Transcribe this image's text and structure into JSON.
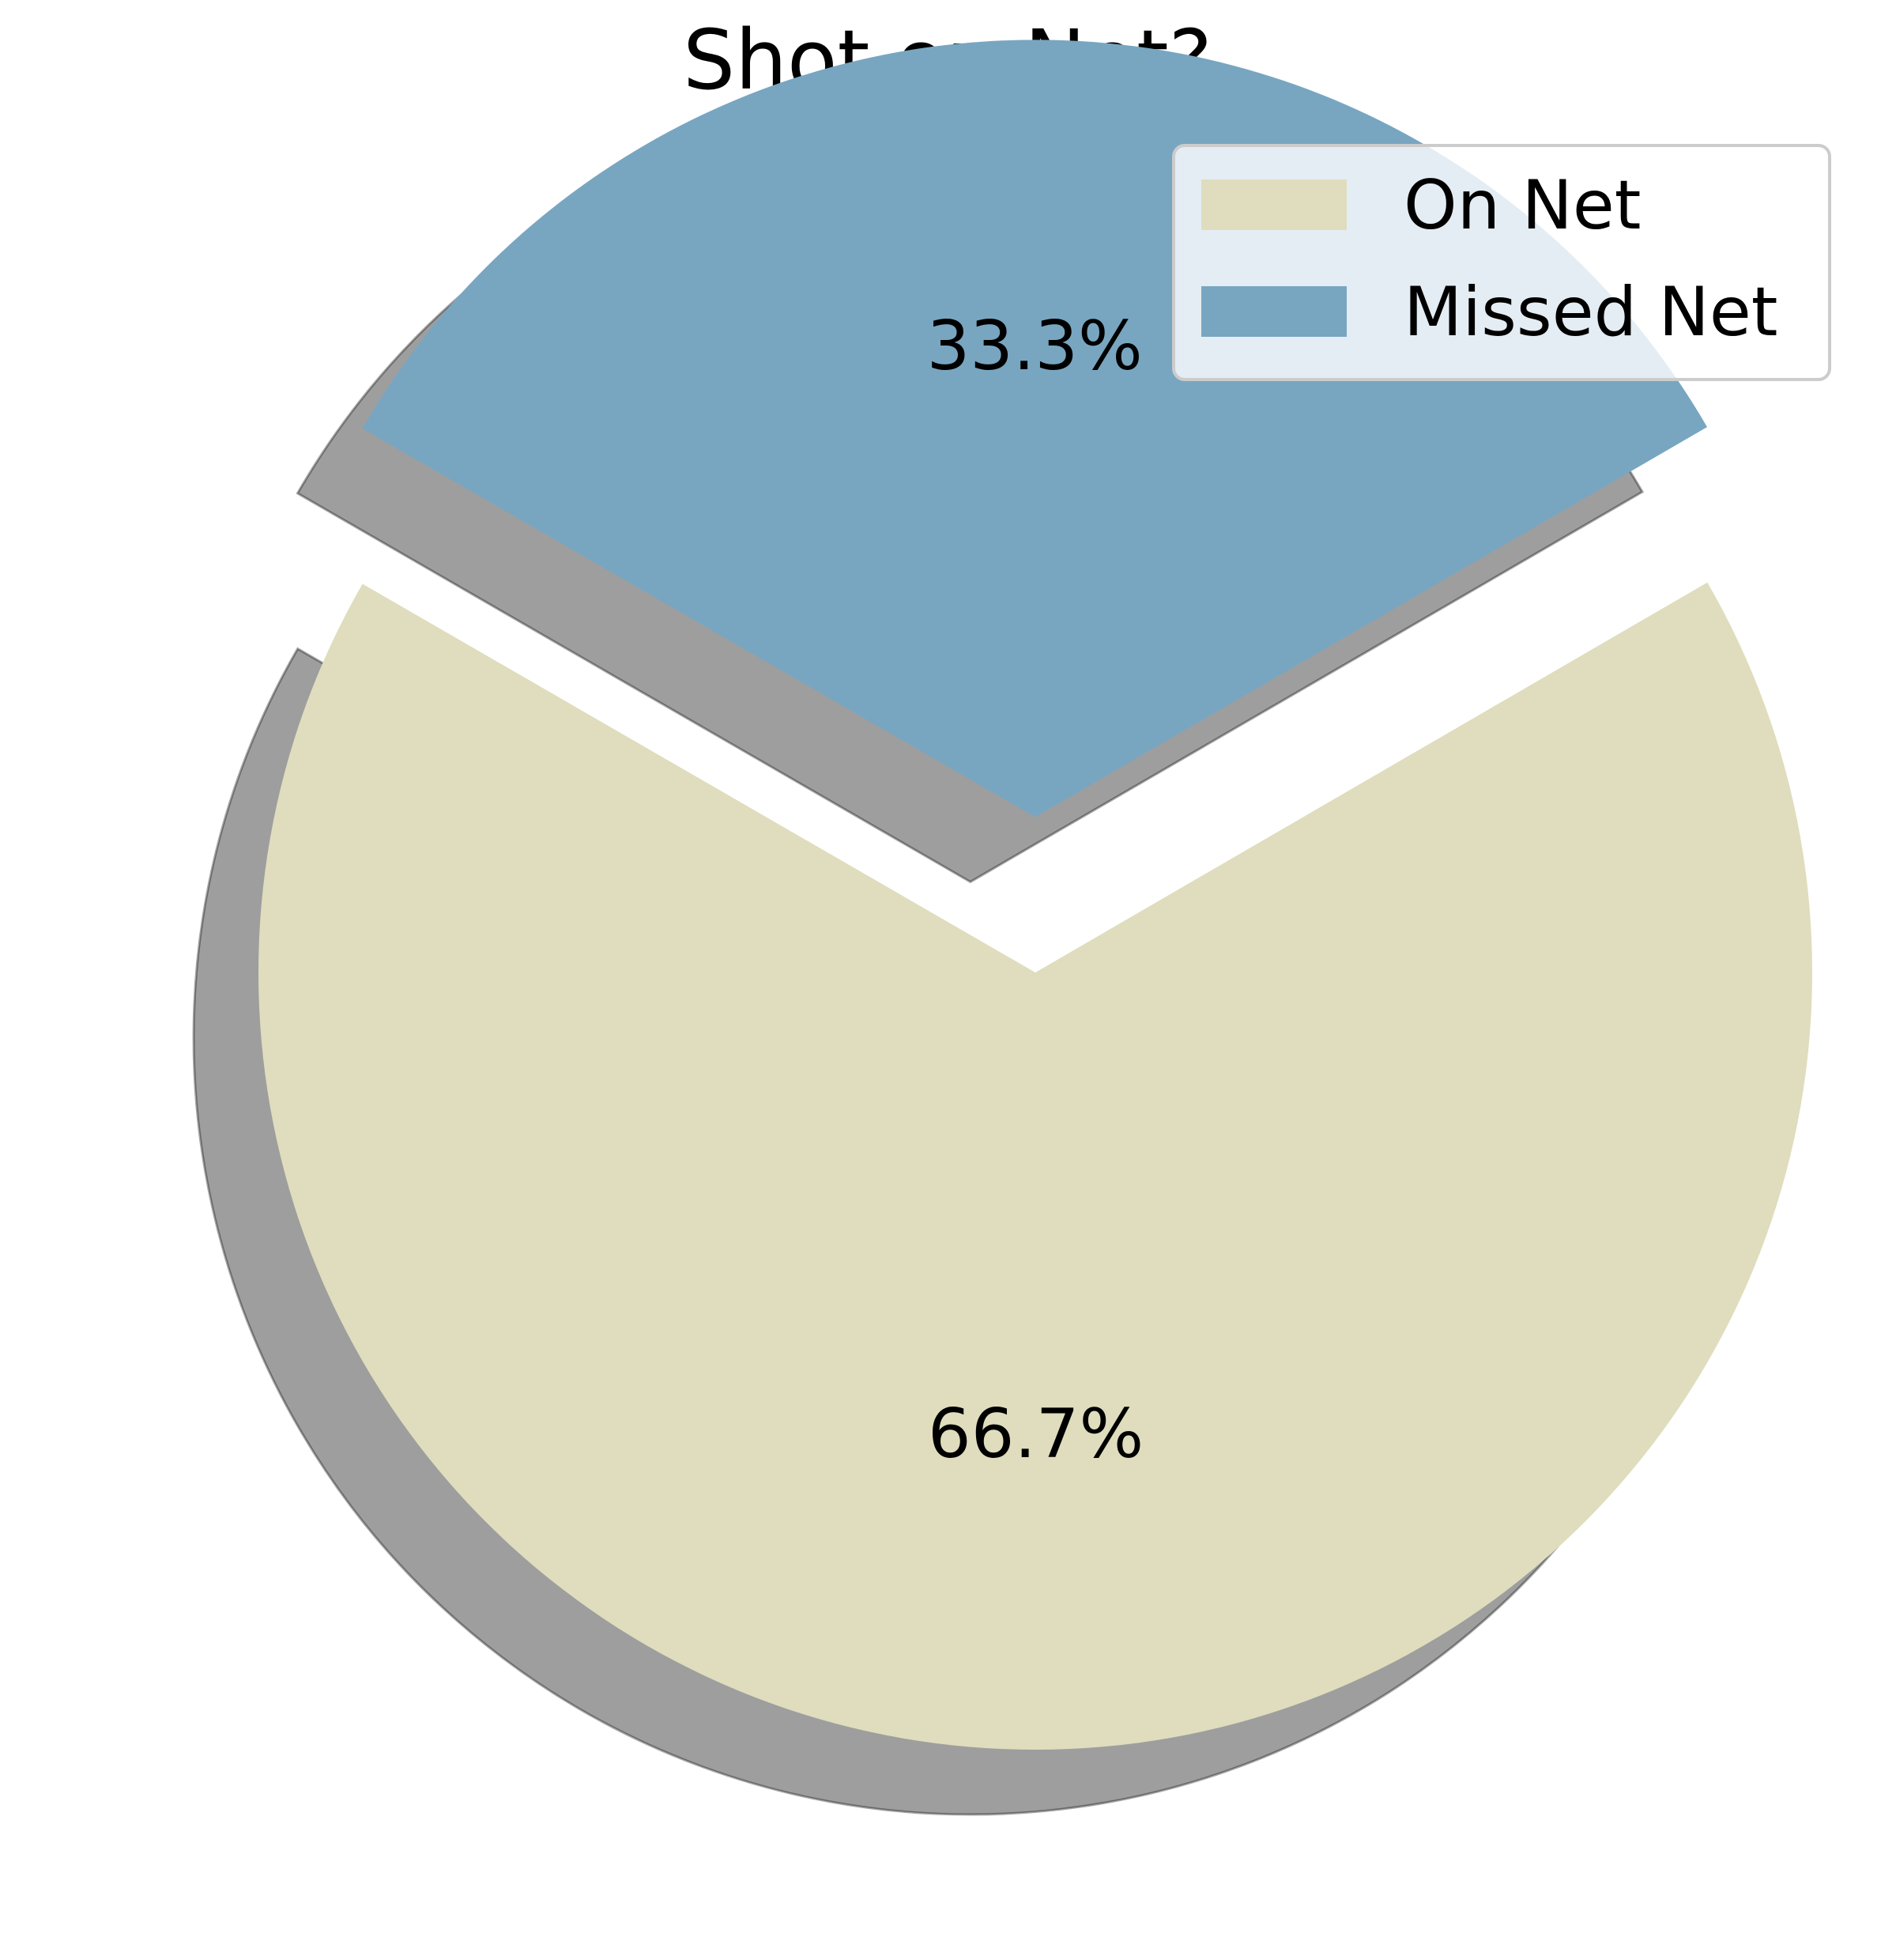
{
  "chart_data": {
    "type": "pie",
    "title": "Shot on Net?",
    "categories": [
      "On Net",
      "Missed Net"
    ],
    "values": [
      66.7,
      33.3
    ],
    "labels": [
      "66.7%",
      "33.3%"
    ],
    "colors": [
      "#dfddbd",
      "#78a6c1"
    ],
    "exploded": [
      false,
      true
    ],
    "shadow": true,
    "start_angle_deg": 150,
    "legend": {
      "placement": "top-right",
      "entries": [
        "On Net",
        "Missed Net"
      ]
    }
  }
}
